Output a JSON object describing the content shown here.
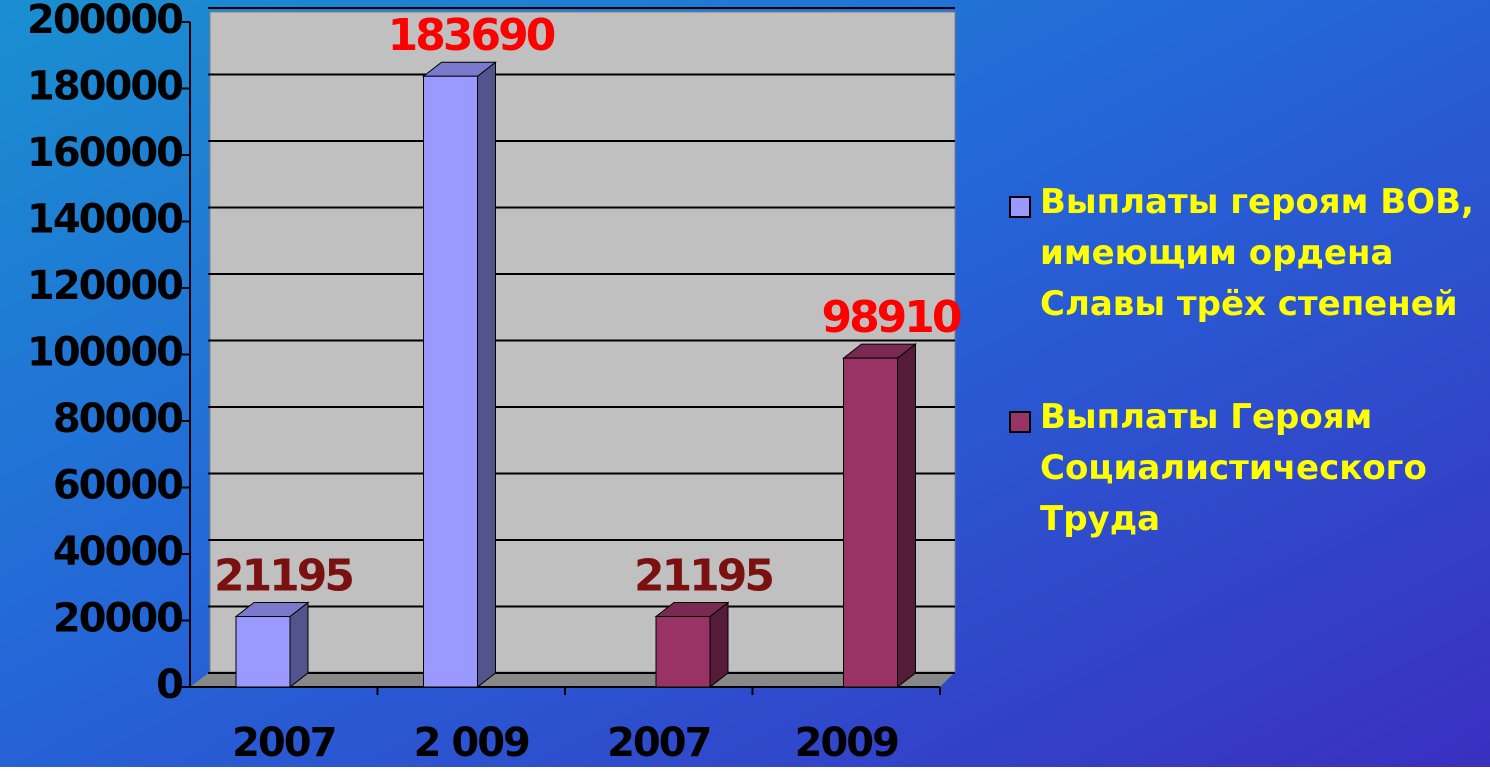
{
  "chart_data": {
    "type": "bar3d",
    "categories": [
      "2007",
      "2 009",
      "2007",
      "2009"
    ],
    "series": [
      {
        "name": "Выплаты героям ВОВ, имеющим ордена Славы трёх степеней",
        "color": "#9999ff",
        "values": [
          21195,
          183690,
          null,
          null
        ],
        "label_colors": [
          "#7a1010",
          "#ff0000",
          null,
          null
        ]
      },
      {
        "name": "Выплаты Героям Социалистического Труда",
        "color": "#993366",
        "values": [
          null,
          null,
          21195,
          98910
        ],
        "label_colors": [
          null,
          null,
          "#7a1010",
          "#ff0000"
        ]
      }
    ],
    "ylim": [
      0,
      200000
    ],
    "yticks": [
      0,
      20000,
      40000,
      60000,
      80000,
      100000,
      120000,
      140000,
      160000,
      180000,
      200000
    ],
    "grid": true,
    "legend": "right"
  }
}
